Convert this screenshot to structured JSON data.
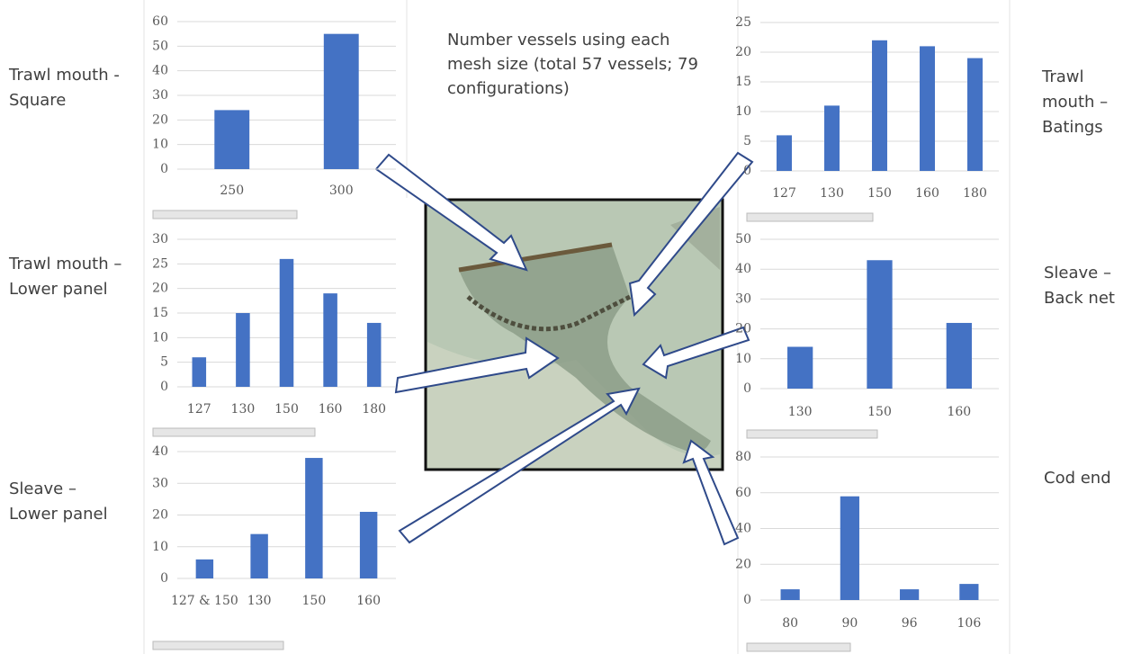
{
  "title": "Number vessels using each mesh size (total 57 vessels; 79 configurations)",
  "chart_data": [
    {
      "type": "bar",
      "title": "Trawl mouth - Square",
      "categories": [
        "250",
        "300"
      ],
      "values": [
        24,
        55
      ],
      "color": "#4472c4",
      "ylim": [
        0,
        60
      ],
      "yticks": [
        0,
        10,
        20,
        30,
        40,
        50,
        60
      ],
      "grid": true
    },
    {
      "type": "bar",
      "title": "Trawl mouth – Batings",
      "categories": [
        "127",
        "130",
        "150",
        "160",
        "180"
      ],
      "values": [
        6,
        11,
        22,
        21,
        19
      ],
      "color": "#4472c4",
      "ylim": [
        0,
        25
      ],
      "yticks": [
        0,
        5,
        10,
        15,
        20,
        25
      ],
      "grid": true
    },
    {
      "type": "bar",
      "title": "Trawl mouth – Lower panel",
      "categories": [
        "127",
        "130",
        "150",
        "160",
        "180"
      ],
      "values": [
        6,
        15,
        26,
        19,
        13
      ],
      "color": "#4472c4",
      "ylim": [
        0,
        30
      ],
      "yticks": [
        0,
        5,
        10,
        15,
        20,
        25,
        30
      ],
      "grid": true
    },
    {
      "type": "bar",
      "title": "Sleave – Back net",
      "categories": [
        "130",
        "150",
        "160"
      ],
      "values": [
        14,
        43,
        22
      ],
      "color": "#4472c4",
      "ylim": [
        0,
        50
      ],
      "yticks": [
        0,
        10,
        20,
        30,
        40,
        50
      ],
      "grid": true
    },
    {
      "type": "bar",
      "title": "Sleave – Lower panel",
      "categories": [
        "127 & 150",
        "130",
        "150",
        "160"
      ],
      "values": [
        6,
        14,
        38,
        21
      ],
      "color": "#4472c4",
      "ylim": [
        0,
        40
      ],
      "yticks": [
        0,
        10,
        20,
        30,
        40
      ],
      "grid": true
    },
    {
      "type": "bar",
      "title": "Cod end",
      "categories": [
        "80",
        "90",
        "96",
        "106"
      ],
      "values": [
        6,
        58,
        6,
        9
      ],
      "color": "#4472c4",
      "ylim": [
        0,
        80
      ],
      "yticks": [
        0,
        20,
        40,
        60,
        80
      ],
      "grid": true
    }
  ]
}
